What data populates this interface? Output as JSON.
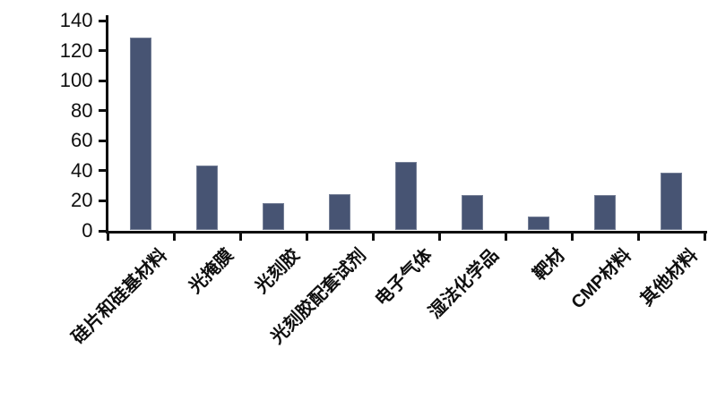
{
  "chart_data": {
    "type": "bar",
    "title": "",
    "xlabel": "",
    "ylabel": "",
    "categories": [
      "硅片和硅基材料",
      "光掩膜",
      "光刻胶",
      "光刻胶配套试剂",
      "电子气体",
      "湿法化学品",
      "靶材",
      "CMP材料",
      "其他材料"
    ],
    "values": [
      128,
      43,
      18,
      24,
      45,
      23,
      9,
      23,
      38
    ],
    "ylim": [
      0,
      140
    ],
    "yticks": [
      0,
      20,
      40,
      60,
      80,
      100,
      120,
      140
    ],
    "grid": "off",
    "legend": "none",
    "bar_color": "#475473",
    "axis_color": "#0f0f0f",
    "background_color": "#ffffff"
  }
}
